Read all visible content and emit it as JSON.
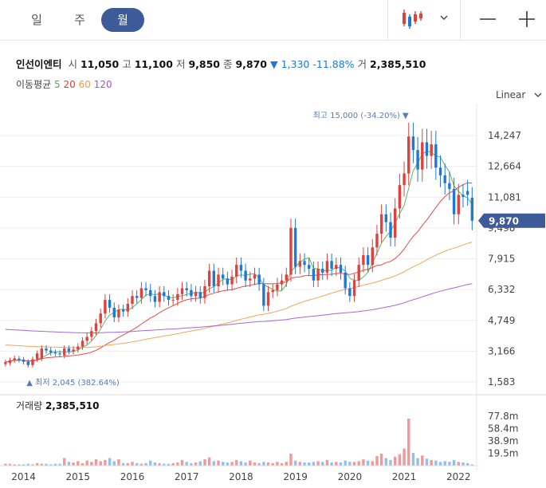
{
  "toolbar": {
    "periods": [
      "일",
      "주",
      "월"
    ],
    "active_period": "월",
    "scale_label": "Linear"
  },
  "quote": {
    "name": "인선이엔티",
    "open_label": "시",
    "open": "11,050",
    "high_label": "고",
    "high": "11,100",
    "low_label": "저",
    "low": "9,850",
    "close_label": "종",
    "close": "9,870",
    "change": "▼ 1,330",
    "change_pct": "-11.88%",
    "volume_label": "거",
    "volume": "2,385,510"
  },
  "ma": {
    "label": "이동평균",
    "periods": [
      "5",
      "20",
      "60",
      "120"
    ],
    "colors": [
      "#4caf50",
      "#e53935",
      "#f39c4a",
      "#9b59d0"
    ]
  },
  "colors": {
    "up": "#e0413c",
    "down": "#1e78d6",
    "accent": "#3d5a99",
    "grid": "#eeeeee"
  },
  "chart_data": {
    "type": "candlestick",
    "interval": "monthly",
    "price_ticks": [
      "14,247",
      "12,664",
      "11,081",
      "9,498",
      "7,915",
      "6,332",
      "4,749",
      "3,166",
      "1,583"
    ],
    "price_tick_values": [
      14247,
      12664,
      11081,
      9498,
      7915,
      6332,
      4749,
      3166,
      1583
    ],
    "price_range": [
      1583,
      15830
    ],
    "last_price_label": "9,870",
    "high_annotation": "최고 15,000 (-34.20%)",
    "low_annotation": "최저 2,045 (382.64%)",
    "volume_label": "거래량",
    "volume_value": "2,385,510",
    "volume_ticks": [
      "77.8m",
      "58.4m",
      "38.9m",
      "19.5m"
    ],
    "volume_tick_values": [
      77.8,
      58.4,
      38.9,
      19.5
    ],
    "x_labels": [
      "2014",
      "2015",
      "2016",
      "2017",
      "2018",
      "2019",
      "2020",
      "2021",
      "2022"
    ],
    "x_label_index": [
      4,
      16,
      28,
      40,
      52,
      64,
      76,
      88,
      100
    ],
    "closes": [
      2600,
      2700,
      2800,
      2720,
      2620,
      2450,
      2750,
      3050,
      3300,
      3200,
      3100,
      3050,
      3000,
      3300,
      3150,
      3250,
      3400,
      3700,
      3900,
      4200,
      4600,
      5100,
      5800,
      5400,
      4900,
      5300,
      5200,
      5600,
      6000,
      5900,
      6400,
      6300,
      6000,
      5700,
      6200,
      6000,
      5800,
      5800,
      6100,
      6400,
      6300,
      6000,
      6200,
      5900,
      6500,
      7300,
      6500,
      7100,
      6900,
      6600,
      7000,
      7600,
      7300,
      6800,
      6900,
      7100,
      6600,
      5500,
      6200,
      6300,
      6600,
      6800,
      7100,
      9500,
      7500,
      7800,
      7600,
      7400,
      6800,
      7400,
      7200,
      7800,
      7400,
      7600,
      7200,
      6400,
      6000,
      6800,
      7600,
      8100,
      7600,
      8500,
      9200,
      10200,
      9800,
      9000,
      10500,
      11700,
      12300,
      14200,
      13500,
      12500,
      13900,
      13200,
      13800,
      12600,
      12200,
      11800,
      11500,
      10200,
      11200,
      11100,
      11200,
      9870
    ],
    "opens": [
      2500,
      2550,
      2700,
      2780,
      2730,
      2620,
      2450,
      2750,
      2800,
      3300,
      3200,
      3100,
      3050,
      2950,
      3300,
      3150,
      3250,
      3400,
      3700,
      3900,
      4200,
      4600,
      5100,
      5800,
      5400,
      4900,
      5300,
      5200,
      5600,
      6000,
      5900,
      6400,
      6300,
      6000,
      5700,
      6200,
      6000,
      5800,
      5800,
      6100,
      6400,
      6300,
      6000,
      6200,
      5900,
      6500,
      7300,
      6500,
      7100,
      6900,
      6600,
      7000,
      7600,
      7300,
      6800,
      6900,
      7100,
      6600,
      5500,
      6200,
      6300,
      6600,
      6800,
      7100,
      9500,
      7500,
      7800,
      7600,
      7400,
      6800,
      7400,
      7200,
      7800,
      7400,
      7600,
      7200,
      6400,
      6000,
      6800,
      7600,
      8100,
      7600,
      8500,
      9200,
      10200,
      9800,
      9000,
      10500,
      11700,
      12300,
      14200,
      13500,
      12500,
      13900,
      13200,
      13800,
      12600,
      12200,
      11800,
      11500,
      10200,
      11200,
      11400,
      11050
    ],
    "volumes_m": [
      3,
      3,
      2,
      2,
      2,
      3,
      2,
      4,
      3,
      3,
      2,
      3,
      3,
      12,
      6,
      5,
      7,
      4,
      8,
      6,
      10,
      7,
      9,
      12,
      7,
      10,
      4,
      4,
      6,
      4,
      3,
      4,
      8,
      5,
      4,
      3,
      3,
      4,
      5,
      9,
      6,
      4,
      5,
      7,
      10,
      13,
      7,
      8,
      6,
      5,
      6,
      9,
      7,
      5,
      8,
      5,
      4,
      6,
      5,
      4,
      6,
      4,
      6,
      19,
      8,
      6,
      5,
      5,
      6,
      7,
      6,
      9,
      5,
      6,
      5,
      8,
      6,
      6,
      7,
      10,
      8,
      7,
      15,
      19,
      12,
      9,
      14,
      18,
      27,
      74,
      20,
      12,
      16,
      11,
      9,
      8,
      6,
      7,
      6,
      9,
      6,
      5,
      4,
      2
    ]
  }
}
